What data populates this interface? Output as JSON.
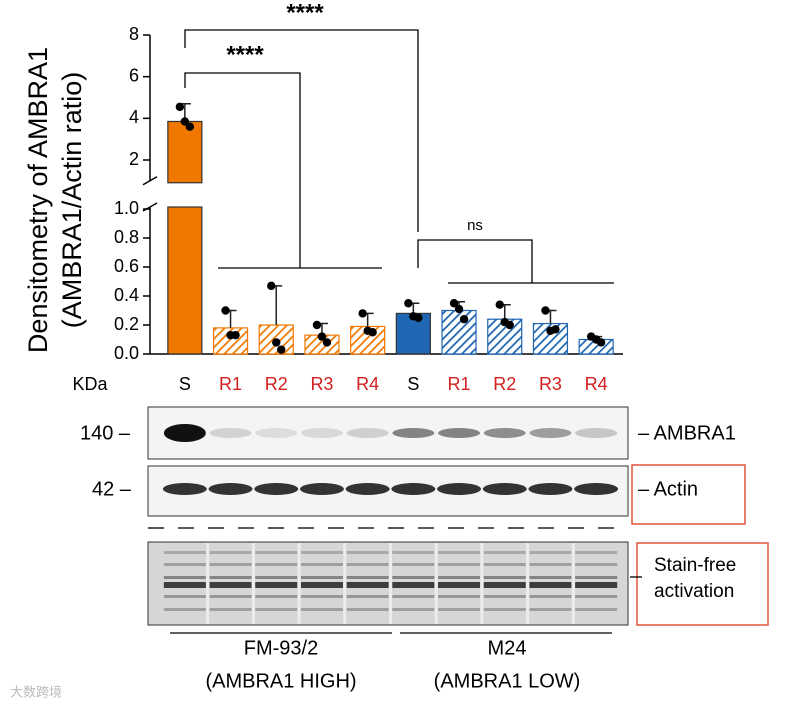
{
  "chart_data": {
    "type": "bar",
    "ylabel": [
      "Densitometry of AMBRA1",
      "(AMBRA1/Actin ratio)"
    ],
    "categories": [
      "S",
      "R1",
      "R2",
      "R3",
      "R4",
      "S",
      "R1",
      "R2",
      "R3",
      "R4"
    ],
    "category_colors": [
      "#000000",
      "#d42020",
      "#d42020",
      "#d42020",
      "#d42020",
      "#000000",
      "#d42020",
      "#d42020",
      "#d42020",
      "#d42020"
    ],
    "values": [
      3.85,
      0.18,
      0.2,
      0.13,
      0.19,
      0.28,
      0.3,
      0.24,
      0.21,
      0.1
    ],
    "errors": [
      0.85,
      0.12,
      0.27,
      0.08,
      0.09,
      0.07,
      0.06,
      0.1,
      0.09,
      0.02
    ],
    "points": [
      [
        4.55,
        3.85,
        3.6
      ],
      [
        0.3,
        0.13,
        0.13
      ],
      [
        0.47,
        0.08,
        0.03
      ],
      [
        0.2,
        0.12,
        0.08
      ],
      [
        0.28,
        0.16,
        0.15
      ],
      [
        0.35,
        0.26,
        0.25
      ],
      [
        0.35,
        0.31,
        0.24
      ],
      [
        0.34,
        0.22,
        0.2
      ],
      [
        0.3,
        0.16,
        0.17
      ],
      [
        0.12,
        0.1,
        0.08
      ]
    ],
    "colors": [
      "#f07800",
      "#f07800",
      "#f07800",
      "#f07800",
      "#f07800",
      "#1f66b3",
      "#1f66b3",
      "#1f66b3",
      "#1f66b3",
      "#1f66b3"
    ],
    "hatched": [
      false,
      true,
      true,
      true,
      true,
      false,
      true,
      true,
      true,
      true
    ],
    "segments": [
      {
        "ylim": [
          0,
          1
        ],
        "yticks": [
          {
            "value": 0,
            "label": "0.0"
          },
          0.2,
          0.4,
          0.6,
          0.8,
          {
            "value": 1,
            "label": "1.0"
          }
        ]
      },
      {
        "ylim": [
          1.1,
          8
        ],
        "yticks": [
          2,
          4,
          6,
          8
        ]
      }
    ],
    "annotations": [
      "****",
      "****",
      "ns"
    ]
  },
  "blot": {
    "unit_label": "KDa",
    "markers": [
      "140 –",
      "42 –"
    ],
    "rows": [
      "– AMBRA1",
      "– Actin"
    ],
    "stain_free": [
      "Stain-free",
      "activation"
    ],
    "groups": [
      {
        "name": "FM-93/2",
        "sub": "(AMBRA1 HIGH)"
      },
      {
        "name": "M24",
        "sub": "(AMBRA1 LOW)"
      }
    ],
    "watermark": "大数跨境"
  }
}
